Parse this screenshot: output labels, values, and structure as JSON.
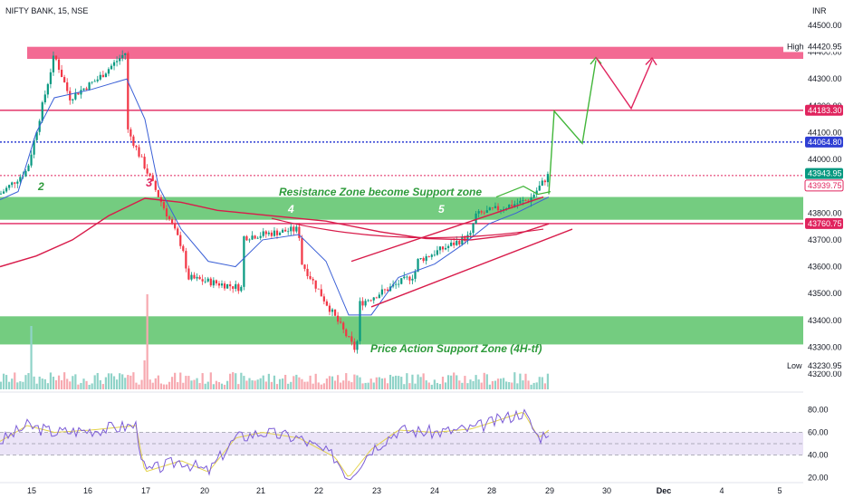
{
  "symbol_title": "NIFTY BANK, 15, NSE",
  "currency": "INR",
  "colors": {
    "bull": "#089981",
    "bear": "#f23645",
    "zone_green": "#5cc36a",
    "zone_pink": "#f2628d",
    "level_red": "#e0245e",
    "level_blue": "#2f3fd4",
    "ema_red": "#d81b4a",
    "ema_blue": "#3a5fd6",
    "projection_green": "#42b63a",
    "projection_red": "#e0245e",
    "rsi_purple": "#7b5cd6",
    "rsi_yellow": "#e4d34a",
    "annotation_green": "#2e9b3b",
    "annotation_red": "#e0245e"
  },
  "chart_data": {
    "type": "candlestick",
    "symbol": "NIFTY BANK",
    "interval": "15",
    "exchange": "NSE",
    "y_axis": {
      "range": [
        43170,
        44530
      ],
      "ticks": [
        43200,
        43300,
        43400,
        43500,
        43600,
        43700,
        43800,
        43900,
        44000,
        44100,
        44200,
        44300,
        44400,
        44500
      ],
      "tick_labels": [
        "43200.00",
        "43300.00",
        "43400.00",
        "43500.00",
        "43600.00",
        "43700.00",
        "43800.00",
        "43900.00",
        "44000.00",
        "44100.00",
        "44200.00",
        "44300.00",
        "44400.00",
        "44500.00"
      ]
    },
    "x_axis": {
      "labels": [
        "15",
        "16",
        "17",
        "20",
        "21",
        "22",
        "23",
        "24",
        "28",
        "29",
        "30",
        "Dec",
        "4",
        "5"
      ],
      "bold_labels": [
        "Dec"
      ]
    },
    "price_labels": [
      {
        "value": 44420.95,
        "text": "44420.95",
        "tag": "High",
        "style": "plain"
      },
      {
        "value": 44183.3,
        "text": "44183.30",
        "style": "red"
      },
      {
        "value": 44064.8,
        "text": "44064.80",
        "style": "blue"
      },
      {
        "value": 43943.95,
        "text": "43943.95",
        "style": "green"
      },
      {
        "value": 43939.75,
        "text": "43939.75",
        "style": "red-outline"
      },
      {
        "value": 43760.75,
        "text": "43760.75",
        "style": "red"
      },
      {
        "value": 43230.95,
        "text": "43230.95",
        "tag": "Low",
        "style": "plain"
      }
    ],
    "zones": [
      {
        "name": "supply-zone",
        "low": 44375,
        "high": 44420,
        "color": "pink"
      },
      {
        "name": "resistance-support-zone",
        "low": 43775,
        "high": 43860,
        "color": "green"
      },
      {
        "name": "price-action-support-zone",
        "low": 43310,
        "high": 43415,
        "color": "green"
      }
    ],
    "horizontal_levels": [
      {
        "value": 44183.3,
        "style": "solid-red"
      },
      {
        "value": 44064.8,
        "style": "dotted-blue"
      },
      {
        "value": 43939.75,
        "style": "dotted-red"
      },
      {
        "value": 43760.75,
        "style": "solid-red"
      }
    ],
    "annotations": [
      {
        "text": "Resistance Zone become Support zone",
        "color": "green"
      },
      {
        "text": "Price Action Support Zone (4H-tf)",
        "color": "green"
      },
      {
        "text": "2",
        "color": "green"
      },
      {
        "text": "3",
        "color": "red"
      },
      {
        "text": "4",
        "color": "white"
      },
      {
        "text": "5",
        "color": "white"
      }
    ],
    "candles_close_path": [
      {
        "x": "15",
        "y": 43870
      },
      {
        "x": "15",
        "y": 43960
      },
      {
        "x": "15",
        "y": 44390
      },
      {
        "x": "16",
        "y": 44230
      },
      {
        "x": "16",
        "y": 44300
      },
      {
        "x": "16",
        "y": 44400
      },
      {
        "x": "17",
        "y": 44110
      },
      {
        "x": "17",
        "y": 43660
      },
      {
        "x": "20",
        "y": 43560
      },
      {
        "x": "20",
        "y": 43520
      },
      {
        "x": "21",
        "y": 43710
      },
      {
        "x": "21",
        "y": 43740
      },
      {
        "x": "22",
        "y": 43620
      },
      {
        "x": "22",
        "y": 43280
      },
      {
        "x": "23",
        "y": 43460
      },
      {
        "x": "23",
        "y": 43570
      },
      {
        "x": "24",
        "y": 43620
      },
      {
        "x": "24",
        "y": 43720
      },
      {
        "x": "28",
        "y": 43790
      },
      {
        "x": "28",
        "y": 43850
      },
      {
        "x": "29",
        "y": 43943.95
      }
    ],
    "rsi": {
      "range": [
        10,
        90
      ],
      "ticks": [
        20,
        40,
        60,
        80
      ],
      "tick_labels": [
        "20.00",
        "40.00",
        "60.00",
        "80.00"
      ],
      "band": [
        40,
        60
      ]
    }
  }
}
